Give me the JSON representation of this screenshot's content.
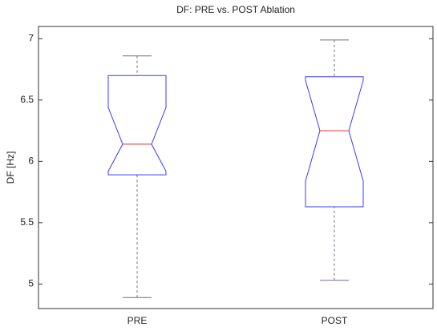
{
  "chart_data": {
    "type": "box",
    "title": "DF: PRE vs. POST Ablation",
    "y_label": "DF [Hz]",
    "categories": [
      "PRE",
      "POST"
    ],
    "boxes": [
      {
        "low": 4.89,
        "q1": 5.89,
        "median": 6.14,
        "q3": 6.7,
        "high": 6.86,
        "notch_low": 5.92,
        "notch_high": 6.44
      },
      {
        "low": 5.03,
        "q1": 5.63,
        "median": 6.25,
        "q3": 6.69,
        "high": 6.99,
        "notch_low": 5.84,
        "notch_high": 6.66
      }
    ],
    "box_color": "#3a3aff",
    "median_color": "#e03030",
    "whisker_color": "#7a6a8a",
    "ylim": [
      4.8,
      7.1
    ],
    "yticks": [
      5,
      5.5,
      6,
      6.5,
      7
    ]
  }
}
